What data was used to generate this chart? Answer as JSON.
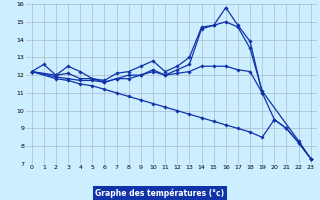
{
  "title": "Graphe des températures (°c)",
  "background_color": "#cceeff",
  "plot_bg_color": "#cceeff",
  "grid_color": "#aabbcc",
  "line_color": "#1133aa",
  "xlim": [
    -0.5,
    23.5
  ],
  "ylim": [
    7,
    16
  ],
  "xticks": [
    0,
    1,
    2,
    3,
    4,
    5,
    6,
    7,
    8,
    9,
    10,
    11,
    12,
    13,
    14,
    15,
    16,
    17,
    18,
    19,
    20,
    21,
    22,
    23
  ],
  "yticks": [
    7,
    8,
    9,
    10,
    11,
    12,
    13,
    14,
    15,
    16
  ],
  "series": [
    {
      "x": [
        0,
        1,
        2,
        3,
        4,
        5,
        6,
        7,
        8,
        9,
        10,
        11,
        12,
        13,
        14,
        15,
        16,
        17,
        18,
        19,
        20,
        21,
        22,
        23
      ],
      "y": [
        12.2,
        12.6,
        12.0,
        12.5,
        12.2,
        11.8,
        11.7,
        12.1,
        12.2,
        12.5,
        12.8,
        12.2,
        12.5,
        13.0,
        14.7,
        14.8,
        15.8,
        14.8,
        13.9,
        11.0,
        9.5,
        9.0,
        8.2,
        7.3
      ]
    },
    {
      "x": [
        0,
        2,
        3,
        4,
        5,
        6,
        7,
        8,
        9,
        10,
        11,
        12,
        13,
        14,
        15,
        16,
        17,
        18,
        19,
        22,
        23
      ],
      "y": [
        12.2,
        12.0,
        12.1,
        11.8,
        11.8,
        11.6,
        11.8,
        12.0,
        12.0,
        12.3,
        12.0,
        12.3,
        12.6,
        14.6,
        14.8,
        15.0,
        14.7,
        13.5,
        11.1,
        8.3,
        7.3
      ]
    },
    {
      "x": [
        0,
        2,
        3,
        4,
        5,
        6,
        7,
        8,
        9,
        10,
        11,
        12,
        13,
        14,
        15,
        16,
        17,
        18,
        19
      ],
      "y": [
        12.2,
        11.9,
        11.8,
        11.7,
        11.7,
        11.6,
        11.8,
        11.8,
        12.0,
        12.2,
        12.0,
        12.1,
        12.2,
        12.5,
        12.5,
        12.5,
        12.3,
        12.2,
        11.0
      ]
    },
    {
      "x": [
        0,
        2,
        3,
        4,
        5,
        6,
        7,
        8,
        9,
        10,
        11,
        12,
        13,
        14,
        15,
        16,
        17,
        18,
        19,
        20,
        21,
        22,
        23
      ],
      "y": [
        12.2,
        11.8,
        11.7,
        11.5,
        11.4,
        11.2,
        11.0,
        10.8,
        10.6,
        10.4,
        10.2,
        10.0,
        9.8,
        9.6,
        9.4,
        9.2,
        9.0,
        8.8,
        8.5,
        9.5,
        9.0,
        8.2,
        7.3
      ]
    }
  ]
}
